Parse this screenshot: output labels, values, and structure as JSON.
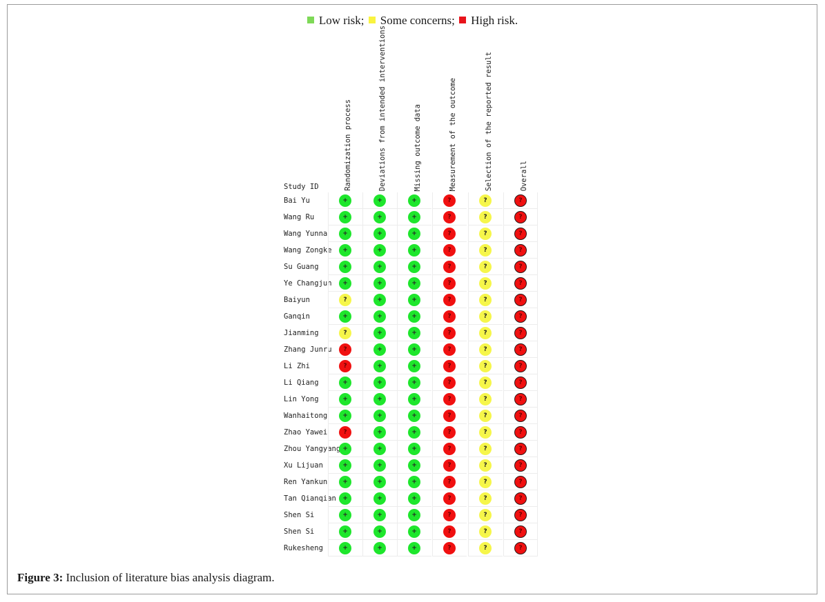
{
  "legend": {
    "items": [
      {
        "label": "Low risk;",
        "color": "#7ed957"
      },
      {
        "label": "Some concerns;",
        "color": "#f9f33f"
      },
      {
        "label": "High risk.",
        "color": "#e8141b"
      }
    ]
  },
  "table": {
    "study_header": "Study ID",
    "domains": [
      "Randomization process",
      "Deviations from intended interventions",
      "Missing outcome data",
      "Measurement of the outcome",
      "Selection of the reported result",
      "Overall"
    ],
    "symbols": {
      "low": "+",
      "some": "?",
      "high": "?"
    },
    "colors": {
      "low": "#1ee62c",
      "some": "#f6f64a",
      "high": "#f01010"
    },
    "rows": [
      {
        "study": "Bai Yu",
        "ratings": [
          "low",
          "low",
          "low",
          "high",
          "some",
          "high"
        ]
      },
      {
        "study": "Wang Ru",
        "ratings": [
          "low",
          "low",
          "low",
          "high",
          "some",
          "high"
        ]
      },
      {
        "study": "Wang Yunna",
        "ratings": [
          "low",
          "low",
          "low",
          "high",
          "some",
          "high"
        ]
      },
      {
        "study": "Wang Zongke",
        "ratings": [
          "low",
          "low",
          "low",
          "high",
          "some",
          "high"
        ]
      },
      {
        "study": "Su Guang",
        "ratings": [
          "low",
          "low",
          "low",
          "high",
          "some",
          "high"
        ]
      },
      {
        "study": "Ye Changjun",
        "ratings": [
          "low",
          "low",
          "low",
          "high",
          "some",
          "high"
        ]
      },
      {
        "study": "Baiyun",
        "ratings": [
          "some",
          "low",
          "low",
          "high",
          "some",
          "high"
        ]
      },
      {
        "study": "Ganqin",
        "ratings": [
          "low",
          "low",
          "low",
          "high",
          "some",
          "high"
        ]
      },
      {
        "study": "Jianming",
        "ratings": [
          "some",
          "low",
          "low",
          "high",
          "some",
          "high"
        ]
      },
      {
        "study": "Zhang Junru",
        "ratings": [
          "high",
          "low",
          "low",
          "high",
          "some",
          "high"
        ]
      },
      {
        "study": "Li Zhi",
        "ratings": [
          "high",
          "low",
          "low",
          "high",
          "some",
          "high"
        ]
      },
      {
        "study": "Li Qiang",
        "ratings": [
          "low",
          "low",
          "low",
          "high",
          "some",
          "high"
        ]
      },
      {
        "study": "Lin Yong",
        "ratings": [
          "low",
          "low",
          "low",
          "high",
          "some",
          "high"
        ]
      },
      {
        "study": "Wanhaitong",
        "ratings": [
          "low",
          "low",
          "low",
          "high",
          "some",
          "high"
        ]
      },
      {
        "study": "Zhao Yawei",
        "ratings": [
          "high",
          "low",
          "low",
          "high",
          "some",
          "high"
        ]
      },
      {
        "study": "Zhou Yangyang",
        "ratings": [
          "low",
          "low",
          "low",
          "high",
          "some",
          "high"
        ]
      },
      {
        "study": "Xu Lijuan",
        "ratings": [
          "low",
          "low",
          "low",
          "high",
          "some",
          "high"
        ]
      },
      {
        "study": "Ren Yankun",
        "ratings": [
          "low",
          "low",
          "low",
          "high",
          "some",
          "high"
        ]
      },
      {
        "study": "Tan Qianqian",
        "ratings": [
          "low",
          "low",
          "low",
          "high",
          "some",
          "high"
        ]
      },
      {
        "study": "Shen Si",
        "ratings": [
          "low",
          "low",
          "low",
          "high",
          "some",
          "high"
        ]
      },
      {
        "study": "Shen Si",
        "ratings": [
          "low",
          "low",
          "low",
          "high",
          "some",
          "high"
        ]
      },
      {
        "study": "Rukesheng",
        "ratings": [
          "low",
          "low",
          "low",
          "high",
          "some",
          "high"
        ]
      }
    ]
  },
  "caption": {
    "label": "Figure 3:",
    "text": " Inclusion of literature bias analysis diagram."
  }
}
